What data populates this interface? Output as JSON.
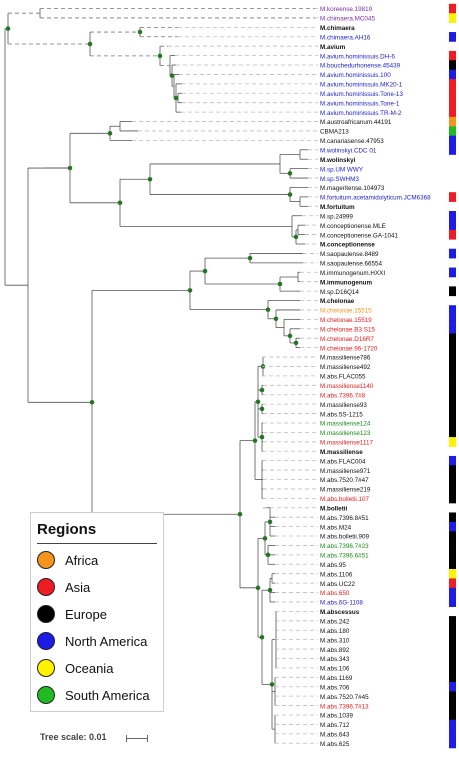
{
  "colors": {
    "Africa": "#f7941d",
    "Asia": "#ee1c24",
    "Europe": "#000000",
    "North America": "#1c1ce6",
    "Oceania": "#fff200",
    "South America": "#22b922",
    "purple": "#7a2fb0",
    "blue": "#1c1cd0",
    "red": "#e81d1d",
    "green": "#188d18",
    "orange": "#f7941d",
    "black": "#111111",
    "node": "#1f7a1f",
    "branch": "#555555"
  },
  "leaves": [
    {
      "label": "M.koreense.19819",
      "tc": "purple",
      "bar": "Asia"
    },
    {
      "label": "M.chimaera.MC045",
      "tc": "purple",
      "bar": "Oceania"
    },
    {
      "label": "M.chimaera",
      "tc": "black",
      "bold": true
    },
    {
      "label": "M.chimaera.AH16",
      "tc": "blue",
      "bar": "North America"
    },
    {
      "label": "M.avium",
      "tc": "black",
      "bold": true
    },
    {
      "label": "M.avium.hominissuis.DH-6",
      "tc": "blue",
      "bar": "Asia"
    },
    {
      "label": "M.bouchedurhonense.45439",
      "tc": "blue",
      "bar": "Europe"
    },
    {
      "label": "M.avium.hominissuis.100",
      "tc": "blue",
      "bar": "North America"
    },
    {
      "label": "M.avium.hominissuis.MK20-1",
      "tc": "blue",
      "bar": "Asia"
    },
    {
      "label": "M.avium.hominissuis.Tone-13",
      "tc": "blue",
      "bar": "Asia"
    },
    {
      "label": "M.avium.hominissuis.Tone-1",
      "tc": "blue",
      "bar": "Asia"
    },
    {
      "label": "M.avium.hominissuis.TR-M-2",
      "tc": "blue",
      "bar": "Asia"
    },
    {
      "label": "M.austroafricanum.44191",
      "tc": "black",
      "bar": "Africa"
    },
    {
      "label": "CBMA213",
      "tc": "black",
      "bar": "South America"
    },
    {
      "label": "M.canariasense.47953",
      "tc": "black",
      "bar": "North America"
    },
    {
      "label": "M.wolinskyi.CDC 01",
      "tc": "blue",
      "bar": "North America"
    },
    {
      "label": "M.wolinskyi",
      "tc": "black",
      "bold": true
    },
    {
      "label": "M.sp.UM WWY",
      "tc": "blue"
    },
    {
      "label": "M.sp.SWHM3",
      "tc": "blue"
    },
    {
      "label": "M.mageritense.104973",
      "tc": "black"
    },
    {
      "label": "M.fortuitum.acetamidolyticum.JCM6368",
      "tc": "blue",
      "bar": "Asia"
    },
    {
      "label": "M.fortuitum",
      "tc": "black",
      "bold": true
    },
    {
      "label": "M.sp.24999",
      "tc": "black",
      "bar": "North America"
    },
    {
      "label": "M.conceptionense.MLE",
      "tc": "black",
      "bar": "North America"
    },
    {
      "label": "M.conceptionense.GA-1041",
      "tc": "black",
      "bar": "Asia"
    },
    {
      "label": "M.conceptionense",
      "tc": "black",
      "bold": true
    },
    {
      "label": "M.saopaulense.8489",
      "tc": "black",
      "bar": "North America"
    },
    {
      "label": "M.saopaulense.66554",
      "tc": "black"
    },
    {
      "label": "M.immunogenum.HXXI",
      "tc": "black",
      "bar": "North America"
    },
    {
      "label": "M.immunogenum",
      "tc": "black",
      "bold": true
    },
    {
      "label": "M.sp.D16Q14",
      "tc": "black",
      "bar": "Europe"
    },
    {
      "label": "M.chelonae",
      "tc": "black",
      "bold": true
    },
    {
      "label": "M.chelonae.15515",
      "tc": "orange",
      "bar": "North America"
    },
    {
      "label": "M.chelonae.15519",
      "tc": "red",
      "bar": "North America"
    },
    {
      "label": "M.chelonae.B3.S15",
      "tc": "red",
      "bar": "North America"
    },
    {
      "label": "M.chelonae.D16R7",
      "tc": "red",
      "bar": "Europe"
    },
    {
      "label": "M.chelonae.96-1720",
      "tc": "red",
      "bar": "Europe"
    },
    {
      "label": "M.massiliense786",
      "tc": "black",
      "bar": "Europe"
    },
    {
      "label": "M.massiliense492",
      "tc": "black",
      "bar": "Europe"
    },
    {
      "label": "M.abs.FLAC055",
      "tc": "black",
      "bar": "Europe"
    },
    {
      "label": "M.massiliense1140",
      "tc": "red",
      "bar": "Europe"
    },
    {
      "label": "M.abs.7396.7#8",
      "tc": "red",
      "bar": "Europe"
    },
    {
      "label": "M.massiliense93",
      "tc": "black",
      "bar": "Europe"
    },
    {
      "label": "M.abs.5S-1215",
      "tc": "black",
      "bar": "Europe"
    },
    {
      "label": "M.massiliense124",
      "tc": "green",
      "bar": "Europe"
    },
    {
      "label": "M.massiliense123",
      "tc": "green",
      "bar": "Europe"
    },
    {
      "label": "M.massiliense1117",
      "tc": "red",
      "bar": "Oceania"
    },
    {
      "label": "M.massiliense",
      "tc": "black",
      "bold": true
    },
    {
      "label": "M.abs.FLAC004",
      "tc": "black",
      "bar": "North America"
    },
    {
      "label": "M.massiliense971",
      "tc": "black",
      "bar": "Europe"
    },
    {
      "label": "M.abs.7520.7#47",
      "tc": "black",
      "bar": "Europe"
    },
    {
      "label": "M.massiliense219",
      "tc": "black",
      "bar": "Europe"
    },
    {
      "label": "M.abs.bolletii.107",
      "tc": "red",
      "bar": "Europe"
    },
    {
      "label": "M.bolletii",
      "tc": "black",
      "bold": true
    },
    {
      "label": "M.abs.7396.8#51",
      "tc": "black",
      "bar": "Europe"
    },
    {
      "label": "M.abs.M24",
      "tc": "black",
      "bar": "North America"
    },
    {
      "label": "M.abs.bolletii.909",
      "tc": "black",
      "bar": "Europe"
    },
    {
      "label": "M.abs.7396.7#23",
      "tc": "green",
      "bar": "Europe"
    },
    {
      "label": "M.abs.7396.6#51",
      "tc": "green",
      "bar": "Europe"
    },
    {
      "label": "M.abs.95",
      "tc": "black",
      "bar": "Europe"
    },
    {
      "label": "M.abs.1106",
      "tc": "black",
      "bar": "Oceania"
    },
    {
      "label": "M.abs.UC22",
      "tc": "black",
      "bar": "Asia"
    },
    {
      "label": "M.abs.650",
      "tc": "red",
      "bar": "North America"
    },
    {
      "label": "M.abs.6G-1108",
      "tc": "blue",
      "bar": "North America"
    },
    {
      "label": "M.abscessus",
      "tc": "black",
      "bold": true
    },
    {
      "label": "M.abs.242",
      "tc": "black",
      "bar": "Europe"
    },
    {
      "label": "M.abs.180",
      "tc": "black",
      "bar": "Europe"
    },
    {
      "label": "M.abs.310",
      "tc": "black",
      "bar": "Europe"
    },
    {
      "label": "M.abs.892",
      "tc": "black",
      "bar": "Europe"
    },
    {
      "label": "M.abs.343",
      "tc": "black",
      "bar": "Europe"
    },
    {
      "label": "M.abs.106",
      "tc": "black",
      "bar": "Europe"
    },
    {
      "label": "M.abs.1169",
      "tc": "black",
      "bar": "Europe"
    },
    {
      "label": "M.abs.706",
      "tc": "black",
      "bar": "North America"
    },
    {
      "label": "M.abs.7520.7#45",
      "tc": "black",
      "bar": "Europe"
    },
    {
      "label": "M.abs.7396.7#13",
      "tc": "red",
      "bar": "Europe"
    },
    {
      "label": "M.abs.1039",
      "tc": "black",
      "bar": "Europe"
    },
    {
      "label": "M.abs.712",
      "tc": "black",
      "bar": "North America"
    },
    {
      "label": "M.abs.643",
      "tc": "black",
      "bar": "North America"
    },
    {
      "label": "M.abs.625",
      "tc": "black",
      "bar": "North America"
    }
  ],
  "legend": {
    "title": "Regions",
    "items": [
      {
        "label": "Africa",
        "color": "#f7941d"
      },
      {
        "label": "Asia",
        "color": "#ee1c24"
      },
      {
        "label": "Europe",
        "color": "#000000"
      },
      {
        "label": "North America",
        "color": "#1c1ce6"
      },
      {
        "label": "Oceania",
        "color": "#fff200"
      },
      {
        "label": "South America",
        "color": "#22b922"
      }
    ]
  },
  "scale": {
    "label": "Tree scale: 0.01"
  }
}
